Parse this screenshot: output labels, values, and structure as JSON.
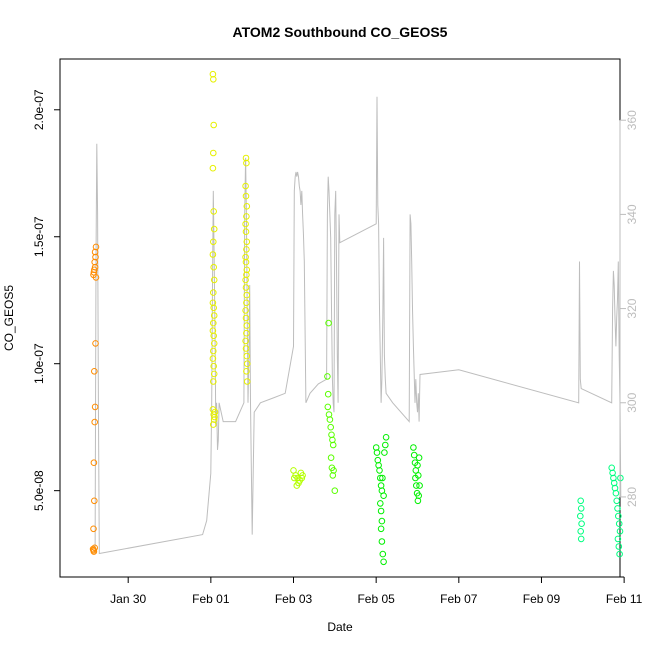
{
  "chart_data": {
    "type": "scatter",
    "title": "ATOM2 Southbound CO_GEOS5",
    "xlabel": "Date",
    "ylabel": "CO_GEOS5",
    "xlim": [
      -0.65,
      12.9
    ],
    "ylim": [
      1.6e-08,
      2.2e-07
    ],
    "x_ticks": [
      {
        "x": 1,
        "label": "Jan 30"
      },
      {
        "x": 3,
        "label": "Feb 01"
      },
      {
        "x": 5,
        "label": "Feb 03"
      },
      {
        "x": 7,
        "label": "Feb 05"
      },
      {
        "x": 9,
        "label": "Feb 07"
      },
      {
        "x": 11,
        "label": "Feb 09"
      },
      {
        "x": 13,
        "label": "Feb 11"
      }
    ],
    "y_ticks": [
      {
        "y": 5e-08,
        "label": "5.0e-08"
      },
      {
        "y": 1e-07,
        "label": "1.0e-07"
      },
      {
        "y": 1.5e-07,
        "label": "1.5e-07"
      },
      {
        "y": 2e-07,
        "label": "2.0e-07"
      }
    ],
    "secondary_axis": {
      "position": "right",
      "color": "#bdbdbd",
      "ylim": [
        263,
        373
      ],
      "ticks": [
        280,
        300,
        320,
        340,
        360
      ]
    },
    "grid": false,
    "series": [
      {
        "color": "#ff8c00",
        "points": [
          [
            0.15,
            2.7e-08
          ],
          [
            0.16,
            2.65e-08
          ],
          [
            0.17,
            2.6e-08
          ],
          [
            0.19,
            2.75e-08
          ],
          [
            0.16,
            3.5e-08
          ],
          [
            0.18,
            4.6e-08
          ],
          [
            0.17,
            6.1e-08
          ],
          [
            0.19,
            7.7e-08
          ],
          [
            0.2,
            8.3e-08
          ],
          [
            0.18,
            9.7e-08
          ],
          [
            0.21,
            1.08e-07
          ],
          [
            0.16,
            1.35e-07
          ],
          [
            0.17,
            1.36e-07
          ],
          [
            0.18,
            1.37e-07
          ],
          [
            0.2,
            1.38e-07
          ],
          [
            0.22,
            1.34e-07
          ],
          [
            0.19,
            1.4e-07
          ],
          [
            0.21,
            1.42e-07
          ],
          [
            0.2,
            1.44e-07
          ],
          [
            0.22,
            1.46e-07
          ]
        ]
      },
      {
        "color": "#e6f000",
        "points": [
          [
            3.05,
            2.14e-07
          ],
          [
            3.06,
            2.12e-07
          ],
          [
            3.07,
            1.94e-07
          ],
          [
            3.06,
            1.83e-07
          ],
          [
            3.05,
            1.77e-07
          ],
          [
            3.07,
            1.6e-07
          ],
          [
            3.08,
            1.53e-07
          ],
          [
            3.06,
            1.48e-07
          ],
          [
            3.05,
            1.43e-07
          ],
          [
            3.07,
            1.38e-07
          ],
          [
            3.08,
            1.33e-07
          ],
          [
            3.06,
            1.28e-07
          ],
          [
            3.05,
            1.24e-07
          ],
          [
            3.07,
            1.22e-07
          ],
          [
            3.08,
            1.19e-07
          ],
          [
            3.06,
            1.16e-07
          ],
          [
            3.05,
            1.13e-07
          ],
          [
            3.07,
            1.11e-07
          ],
          [
            3.08,
            1.08e-07
          ],
          [
            3.06,
            1.05e-07
          ],
          [
            3.05,
            1.02e-07
          ],
          [
            3.07,
            9.9e-08
          ],
          [
            3.08,
            9.6e-08
          ],
          [
            3.06,
            9.3e-08
          ],
          [
            3.05,
            8.2e-08
          ],
          [
            3.07,
            8e-08
          ],
          [
            3.08,
            7.8e-08
          ],
          [
            3.06,
            7.6e-08
          ],
          [
            3.09,
            7.9e-08
          ],
          [
            3.1,
            8.1e-08
          ],
          [
            3.85,
            1.81e-07
          ],
          [
            3.86,
            1.79e-07
          ],
          [
            3.84,
            1.7e-07
          ],
          [
            3.85,
            1.66e-07
          ],
          [
            3.87,
            1.62e-07
          ],
          [
            3.86,
            1.58e-07
          ],
          [
            3.84,
            1.55e-07
          ],
          [
            3.85,
            1.52e-07
          ],
          [
            3.87,
            1.48e-07
          ],
          [
            3.86,
            1.45e-07
          ],
          [
            3.84,
            1.42e-07
          ],
          [
            3.85,
            1.4e-07
          ],
          [
            3.87,
            1.37e-07
          ],
          [
            3.86,
            1.35e-07
          ],
          [
            3.84,
            1.33e-07
          ],
          [
            3.85,
            1.3e-07
          ],
          [
            3.87,
            1.27e-07
          ],
          [
            3.86,
            1.24e-07
          ],
          [
            3.84,
            1.21e-07
          ],
          [
            3.85,
            1.18e-07
          ],
          [
            3.87,
            1.15e-07
          ],
          [
            3.86,
            1.12e-07
          ],
          [
            3.84,
            1.09e-07
          ],
          [
            3.85,
            1.06e-07
          ],
          [
            3.87,
            1.03e-07
          ],
          [
            3.88,
            1e-07
          ],
          [
            3.86,
            9.7e-08
          ],
          [
            3.88,
            9.3e-08
          ]
        ]
      },
      {
        "color": "#b4ff00",
        "points": [
          [
            5.0,
            5.8e-08
          ],
          [
            5.05,
            5.6e-08
          ],
          [
            5.1,
            5.5e-08
          ],
          [
            5.15,
            5.4e-08
          ],
          [
            5.2,
            5.5e-08
          ],
          [
            5.08,
            5.2e-08
          ],
          [
            5.12,
            5.3e-08
          ],
          [
            5.18,
            5.7e-08
          ],
          [
            5.02,
            5.5e-08
          ],
          [
            5.22,
            5.6e-08
          ]
        ]
      },
      {
        "color": "#5aff00",
        "points": [
          [
            5.85,
            1.16e-07
          ],
          [
            5.82,
            9.5e-08
          ],
          [
            5.84,
            8.8e-08
          ],
          [
            5.83,
            8.3e-08
          ],
          [
            5.86,
            8e-08
          ],
          [
            5.88,
            7.8e-08
          ],
          [
            5.9,
            7.5e-08
          ],
          [
            5.92,
            7.2e-08
          ],
          [
            5.94,
            7e-08
          ],
          [
            5.96,
            6.8e-08
          ],
          [
            5.91,
            6.3e-08
          ],
          [
            5.93,
            5.9e-08
          ],
          [
            5.95,
            5.6e-08
          ],
          [
            5.97,
            5.8e-08
          ],
          [
            6.0,
            5e-08
          ]
        ]
      },
      {
        "color": "#00f000",
        "points": [
          [
            7.0,
            6.7e-08
          ],
          [
            7.02,
            6.5e-08
          ],
          [
            7.04,
            6.2e-08
          ],
          [
            7.06,
            6e-08
          ],
          [
            7.08,
            5.8e-08
          ],
          [
            7.1,
            5.5e-08
          ],
          [
            7.12,
            5.2e-08
          ],
          [
            7.14,
            5e-08
          ],
          [
            7.1,
            4.5e-08
          ],
          [
            7.12,
            4.2e-08
          ],
          [
            7.14,
            3.8e-08
          ],
          [
            7.12,
            3.5e-08
          ],
          [
            7.14,
            3e-08
          ],
          [
            7.16,
            2.5e-08
          ],
          [
            7.18,
            2.2e-08
          ],
          [
            7.2,
            6.5e-08
          ],
          [
            7.22,
            6.8e-08
          ],
          [
            7.24,
            7.1e-08
          ],
          [
            7.15,
            5.5e-08
          ],
          [
            7.18,
            4.8e-08
          ],
          [
            7.9,
            6.7e-08
          ],
          [
            7.92,
            6.4e-08
          ],
          [
            7.94,
            6.1e-08
          ],
          [
            7.96,
            5.8e-08
          ],
          [
            7.95,
            5.5e-08
          ],
          [
            7.97,
            5.2e-08
          ],
          [
            7.99,
            4.9e-08
          ],
          [
            8.01,
            4.6e-08
          ],
          [
            8.03,
            4.8e-08
          ],
          [
            8.05,
            5.2e-08
          ],
          [
            8.02,
            5.6e-08
          ],
          [
            8.0,
            6e-08
          ],
          [
            8.04,
            6.3e-08
          ]
        ]
      },
      {
        "color": "#00ff80",
        "points": [
          [
            11.95,
            4.6e-08
          ],
          [
            11.96,
            4.3e-08
          ],
          [
            11.94,
            4e-08
          ],
          [
            11.97,
            3.7e-08
          ],
          [
            11.95,
            3.4e-08
          ],
          [
            11.96,
            3.1e-08
          ],
          [
            12.7,
            5.9e-08
          ],
          [
            12.72,
            5.7e-08
          ],
          [
            12.74,
            5.5e-08
          ],
          [
            12.76,
            5.3e-08
          ],
          [
            12.78,
            5.1e-08
          ],
          [
            12.8,
            4.9e-08
          ],
          [
            12.82,
            4.6e-08
          ],
          [
            12.84,
            4.3e-08
          ],
          [
            12.86,
            4e-08
          ],
          [
            12.88,
            3.7e-08
          ],
          [
            12.9,
            3.4e-08
          ],
          [
            12.85,
            3.1e-08
          ],
          [
            12.87,
            2.8e-08
          ],
          [
            12.89,
            2.5e-08
          ],
          [
            12.91,
            5.5e-08
          ]
        ]
      }
    ],
    "right_axis_line": {
      "color": "#bdbdbd",
      "points": [
        [
          0.2,
          268
        ],
        [
          0.22,
          330
        ],
        [
          0.24,
          355
        ],
        [
          0.26,
          340
        ],
        [
          0.28,
          300
        ],
        [
          0.3,
          268
        ],
        [
          2.8,
          272
        ],
        [
          2.9,
          275
        ],
        [
          3.0,
          285
        ],
        [
          3.02,
          300
        ],
        [
          3.04,
          325
        ],
        [
          3.06,
          345
        ],
        [
          3.08,
          330
        ],
        [
          3.1,
          315
        ],
        [
          3.12,
          295
        ],
        [
          3.14,
          300
        ],
        [
          3.16,
          290
        ],
        [
          3.18,
          292
        ],
        [
          3.2,
          300
        ],
        [
          3.3,
          296
        ],
        [
          3.6,
          296
        ],
        [
          3.8,
          300
        ],
        [
          3.82,
          340
        ],
        [
          3.84,
          352
        ],
        [
          3.86,
          340
        ],
        [
          3.88,
          320
        ],
        [
          3.9,
          300
        ],
        [
          3.92,
          310
        ],
        [
          3.94,
          325
        ],
        [
          3.96,
          300
        ],
        [
          3.98,
          285
        ],
        [
          4.0,
          272
        ],
        [
          4.05,
          298
        ],
        [
          4.2,
          300
        ],
        [
          4.5,
          301
        ],
        [
          4.8,
          302
        ],
        [
          5.0,
          312
        ],
        [
          5.02,
          345
        ],
        [
          5.04,
          348
        ],
        [
          5.06,
          349
        ],
        [
          5.08,
          348
        ],
        [
          5.1,
          349
        ],
        [
          5.12,
          348
        ],
        [
          5.14,
          346
        ],
        [
          5.16,
          345
        ],
        [
          5.18,
          342
        ],
        [
          5.2,
          345
        ],
        [
          5.22,
          340
        ],
        [
          5.24,
          336
        ],
        [
          5.26,
          330
        ],
        [
          5.3,
          300
        ],
        [
          5.4,
          302
        ],
        [
          5.6,
          304
        ],
        [
          5.8,
          305
        ],
        [
          5.82,
          340
        ],
        [
          5.84,
          348
        ],
        [
          5.86,
          345
        ],
        [
          5.9,
          335
        ],
        [
          5.92,
          320
        ],
        [
          5.94,
          305
        ],
        [
          5.96,
          300
        ],
        [
          5.98,
          298
        ],
        [
          6.0,
          340
        ],
        [
          6.02,
          345
        ],
        [
          6.04,
          330
        ],
        [
          6.06,
          310
        ],
        [
          6.08,
          300
        ],
        [
          6.1,
          340
        ],
        [
          6.12,
          334
        ],
        [
          7.0,
          338
        ],
        [
          7.02,
          365
        ],
        [
          7.04,
          342
        ],
        [
          7.06,
          338
        ],
        [
          7.08,
          320
        ],
        [
          7.1,
          310
        ],
        [
          7.12,
          300
        ],
        [
          7.14,
          305
        ],
        [
          7.16,
          318
        ],
        [
          7.18,
          335
        ],
        [
          7.2,
          310
        ],
        [
          7.22,
          305
        ],
        [
          7.24,
          302
        ],
        [
          7.4,
          300
        ],
        [
          7.8,
          296
        ],
        [
          7.82,
          340
        ],
        [
          7.84,
          338
        ],
        [
          7.86,
          330
        ],
        [
          7.88,
          320
        ],
        [
          7.9,
          312
        ],
        [
          7.92,
          306
        ],
        [
          7.94,
          300
        ],
        [
          7.96,
          305
        ],
        [
          7.98,
          300
        ],
        [
          8.0,
          298
        ],
        [
          8.02,
          302
        ],
        [
          8.04,
          296
        ],
        [
          8.06,
          306
        ],
        [
          9.0,
          307
        ],
        [
          11.9,
          300
        ],
        [
          11.92,
          330
        ],
        [
          11.94,
          305
        ],
        [
          11.96,
          303
        ],
        [
          12.7,
          300
        ],
        [
          12.72,
          320
        ],
        [
          12.74,
          328
        ],
        [
          12.76,
          325
        ],
        [
          12.78,
          318
        ],
        [
          12.8,
          312
        ],
        [
          12.82,
          318
        ],
        [
          12.84,
          322
        ],
        [
          12.86,
          330
        ],
        [
          12.88,
          310
        ],
        [
          12.9,
          300
        ],
        [
          12.92,
          280
        ]
      ]
    }
  }
}
